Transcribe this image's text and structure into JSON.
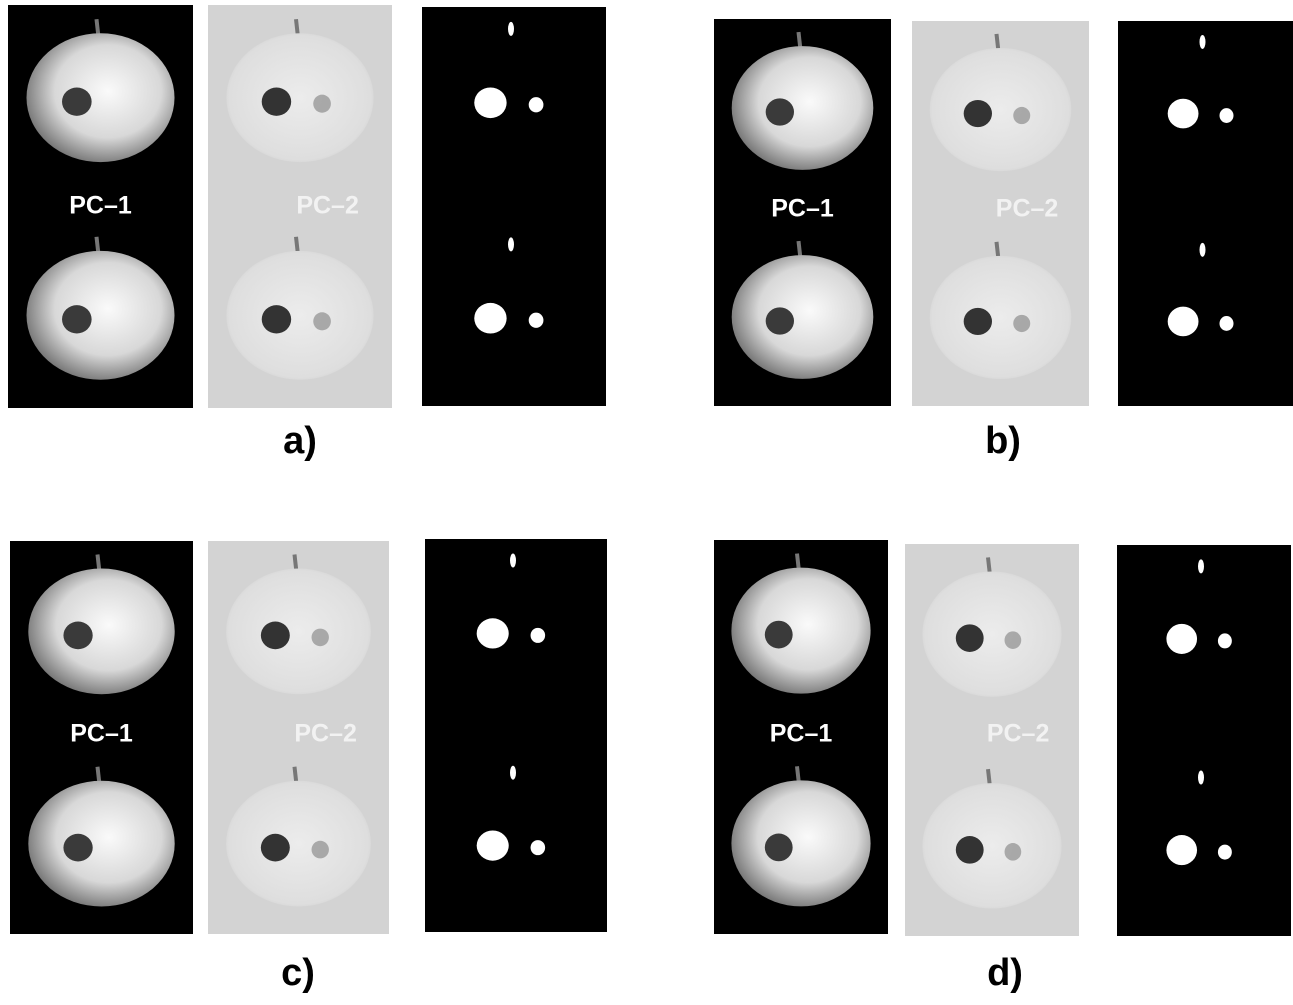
{
  "panels": [
    {
      "label": "a)",
      "pc1": "PC–1",
      "pc2": "PC–2"
    },
    {
      "label": "b)",
      "pc1": "PC–1",
      "pc2": "PC–2"
    },
    {
      "label": "c)",
      "pc1": "PC–1",
      "pc2": "PC–2"
    },
    {
      "label": "d)",
      "pc1": "PC–1",
      "pc2": "PC–2"
    }
  ]
}
